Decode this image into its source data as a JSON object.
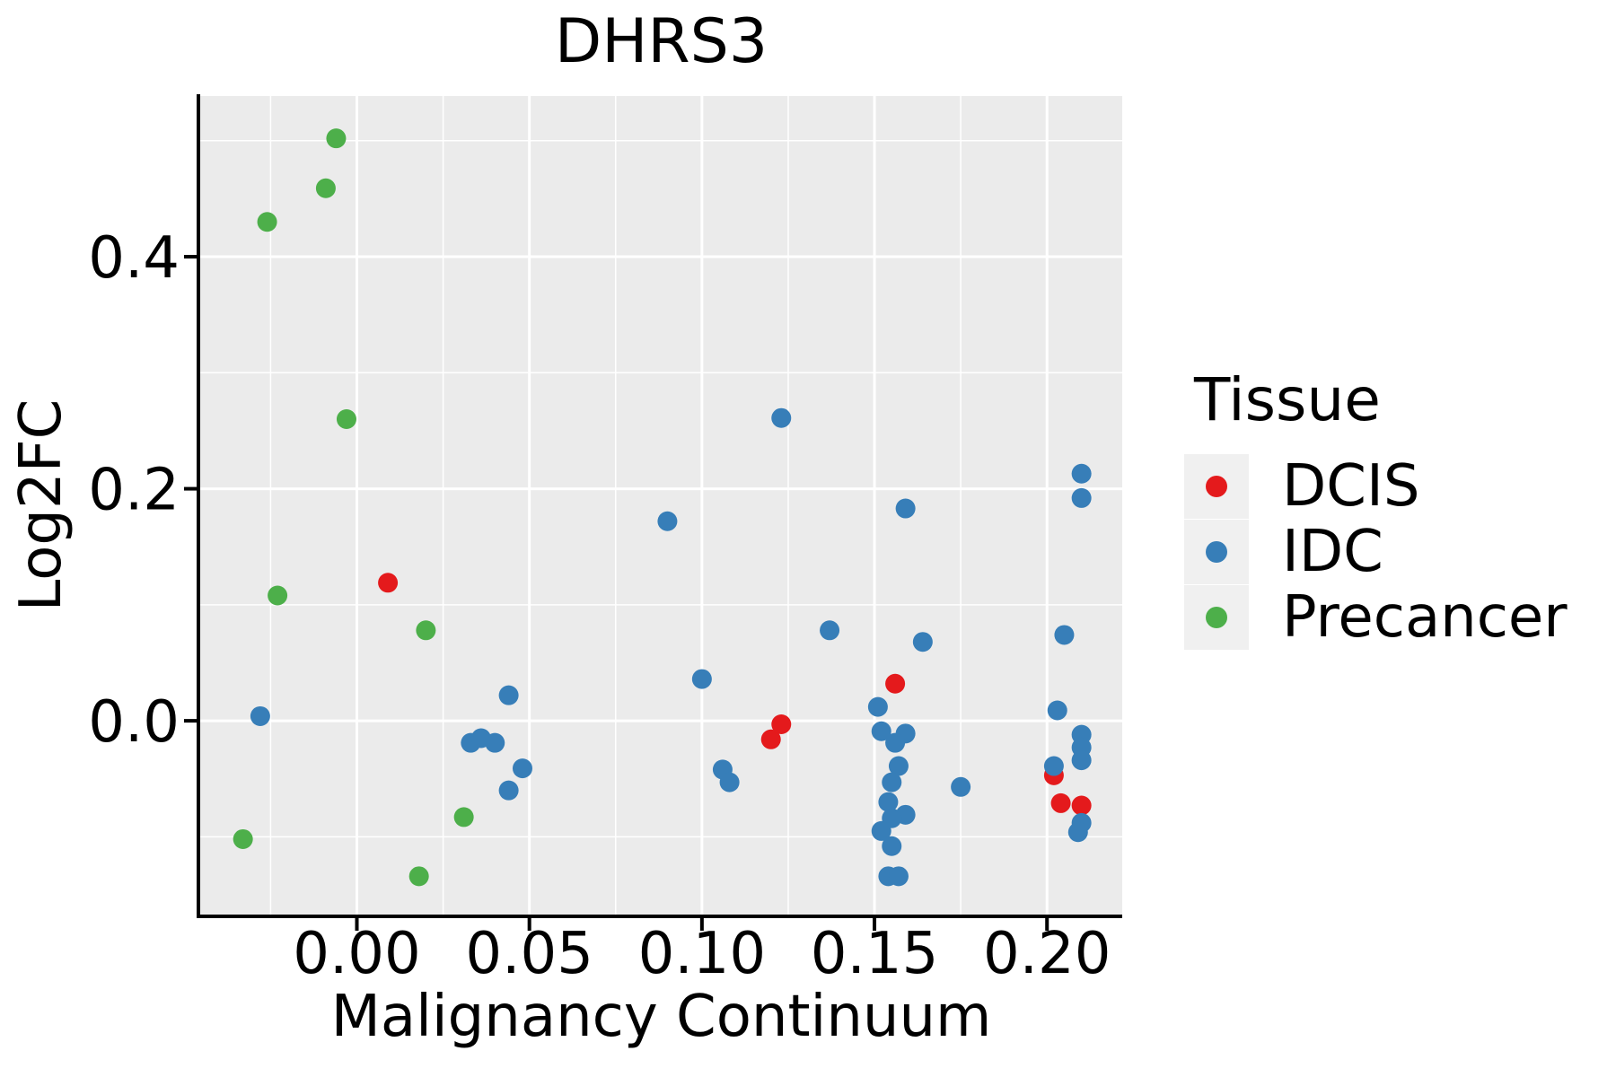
{
  "figure": {
    "title": "DHRS3",
    "xlabel": "Malignancy Continuum",
    "ylabel": "Log2FC"
  },
  "chart_data": {
    "type": "scatter",
    "title": "DHRS3",
    "xlabel": "Malignancy Continuum",
    "ylabel": "Log2FC",
    "xlim": [
      -0.0454,
      0.2218
    ],
    "ylim": [
      -0.167,
      0.5385
    ],
    "x_ticks": {
      "values": [
        0.0,
        0.05,
        0.1,
        0.15,
        0.2
      ],
      "labels": [
        "0.00",
        "0.05",
        "0.10",
        "0.15",
        "0.20"
      ]
    },
    "y_ticks": {
      "values": [
        0.0,
        0.2,
        0.4
      ],
      "labels": [
        "0.0",
        "0.2",
        "0.4"
      ]
    },
    "x_minor_ticks": [
      -0.025,
      0.025,
      0.075,
      0.125,
      0.175
    ],
    "y_minor_ticks": [
      -0.1,
      0.1,
      0.3,
      0.5
    ],
    "grid": true,
    "panel_bg": "#EBEBEB",
    "grid_color": "#FFFFFF",
    "point_radius": 11,
    "legend": {
      "title": "Tissue",
      "position": "right"
    },
    "series": [
      {
        "name": "DCIS",
        "color": "#E41A1C",
        "points": [
          [
            0.009,
            0.119
          ],
          [
            0.12,
            -0.016
          ],
          [
            0.123,
            -0.003
          ],
          [
            0.156,
            0.032
          ],
          [
            0.202,
            -0.047
          ],
          [
            0.204,
            -0.071
          ],
          [
            0.21,
            -0.073
          ]
        ]
      },
      {
        "name": "IDC",
        "color": "#377EB8",
        "points": [
          [
            -0.028,
            0.004
          ],
          [
            0.033,
            -0.019
          ],
          [
            0.036,
            -0.015
          ],
          [
            0.04,
            -0.019
          ],
          [
            0.044,
            0.022
          ],
          [
            0.048,
            -0.041
          ],
          [
            0.044,
            -0.06
          ],
          [
            0.09,
            0.172
          ],
          [
            0.1,
            0.036
          ],
          [
            0.106,
            -0.042
          ],
          [
            0.108,
            -0.053
          ],
          [
            0.123,
            0.261
          ],
          [
            0.137,
            0.078
          ],
          [
            0.151,
            0.012
          ],
          [
            0.152,
            -0.009
          ],
          [
            0.159,
            -0.011
          ],
          [
            0.156,
            -0.019
          ],
          [
            0.157,
            -0.039
          ],
          [
            0.155,
            -0.053
          ],
          [
            0.154,
            -0.07
          ],
          [
            0.159,
            -0.081
          ],
          [
            0.155,
            -0.084
          ],
          [
            0.152,
            -0.095
          ],
          [
            0.155,
            -0.108
          ],
          [
            0.154,
            -0.134
          ],
          [
            0.157,
            -0.134
          ],
          [
            0.159,
            0.183
          ],
          [
            0.164,
            0.068
          ],
          [
            0.175,
            -0.057
          ],
          [
            0.203,
            0.009
          ],
          [
            0.205,
            0.074
          ],
          [
            0.21,
            0.213
          ],
          [
            0.21,
            0.192
          ],
          [
            0.21,
            -0.012
          ],
          [
            0.21,
            -0.023
          ],
          [
            0.21,
            -0.034
          ],
          [
            0.202,
            -0.039
          ],
          [
            0.21,
            -0.088
          ],
          [
            0.209,
            -0.096
          ]
        ]
      },
      {
        "name": "Precancer",
        "color": "#4DAF4A",
        "points": [
          [
            -0.006,
            0.502
          ],
          [
            -0.009,
            0.459
          ],
          [
            -0.026,
            0.43
          ],
          [
            -0.003,
            0.26
          ],
          [
            -0.023,
            0.108
          ],
          [
            0.02,
            0.078
          ],
          [
            0.031,
            -0.083
          ],
          [
            -0.033,
            -0.102
          ],
          [
            0.018,
            -0.134
          ]
        ]
      }
    ]
  }
}
